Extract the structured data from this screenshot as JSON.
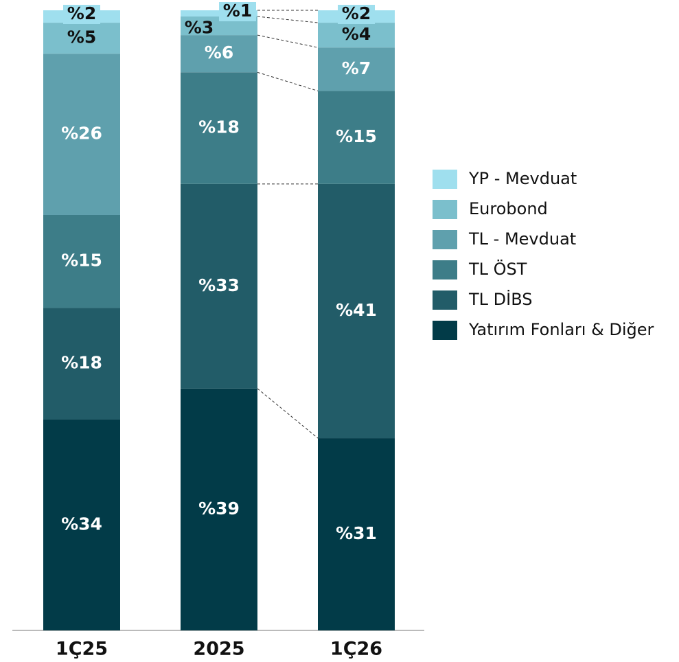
{
  "chart_data": {
    "type": "stacked_bar",
    "categories": [
      "1Ç25",
      "2025",
      "1Ç26"
    ],
    "ylim": [
      0,
      100
    ],
    "series": [
      {
        "name": "Yatırım Fonları & Diğer",
        "color": "#023b48",
        "values": [
          34,
          39,
          31
        ],
        "value_labels": [
          "%34",
          "%39",
          "%31"
        ]
      },
      {
        "name": "TL DİBS",
        "color": "#225c68",
        "values": [
          18,
          33,
          41
        ],
        "value_labels": [
          "%18",
          "%33",
          "%41"
        ]
      },
      {
        "name": "TL ÖST",
        "color": "#3d7d88",
        "values": [
          15,
          18,
          15
        ],
        "value_labels": [
          "%15",
          "%18",
          "%15"
        ]
      },
      {
        "name": "TL - Mevduat",
        "color": "#5fa0ad",
        "values": [
          26,
          6,
          7
        ],
        "value_labels": [
          "%26",
          "%6",
          "%7"
        ]
      },
      {
        "name": "Eurobond",
        "color": "#7bbfcc",
        "values": [
          5,
          3,
          4
        ],
        "value_labels": [
          "%5",
          "%3",
          "%4"
        ]
      },
      {
        "name": "YP - Mevduat",
        "color": "#9fdfee",
        "values": [
          2,
          1,
          2
        ],
        "value_labels": [
          "%2",
          "%1",
          "%2"
        ]
      }
    ]
  }
}
